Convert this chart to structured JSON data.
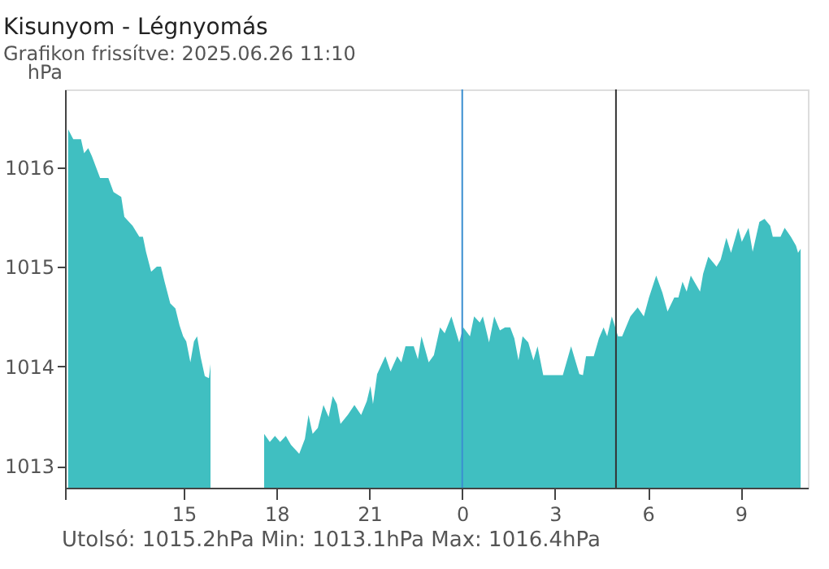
{
  "chart_data": {
    "type": "area",
    "title": "Kisunyom - Légnyomás",
    "subtitle": "Grafikon frissítve: 2025.06.26 11:10",
    "ylabel": "hPa",
    "x": [
      "2025-06-25T11:16",
      "2025-06-25T11:26",
      "2025-06-25T11:41",
      "2025-06-25T11:47",
      "2025-06-25T11:55",
      "2025-06-25T12:02",
      "2025-06-25T12:18",
      "2025-06-25T12:34",
      "2025-06-25T12:44",
      "2025-06-25T12:59",
      "2025-06-25T13:05",
      "2025-06-25T13:21",
      "2025-06-25T13:34",
      "2025-06-25T13:41",
      "2025-06-25T13:47",
      "2025-06-25T13:57",
      "2025-06-25T14:08",
      "2025-06-25T14:16",
      "2025-06-25T14:23",
      "2025-06-25T14:34",
      "2025-06-25T14:44",
      "2025-06-25T14:52",
      "2025-06-25T14:59",
      "2025-06-25T15:05",
      "2025-06-25T15:13",
      "2025-06-25T15:20",
      "2025-06-25T15:26",
      "2025-06-25T15:33",
      "2025-06-25T15:41",
      "2025-06-25T15:49",
      "2025-06-25T15:52",
      "2025-06-25T16:42",
      "2025-06-25T17:36",
      "2025-06-25T17:47",
      "2025-06-25T17:57",
      "2025-06-25T18:07",
      "2025-06-25T18:18",
      "2025-06-25T18:28",
      "2025-06-25T18:44",
      "2025-06-25T18:55",
      "2025-06-25T19:02",
      "2025-06-25T19:10",
      "2025-06-25T19:20",
      "2025-06-25T19:31",
      "2025-06-25T19:41",
      "2025-06-25T19:49",
      "2025-06-25T19:57",
      "2025-06-25T20:04",
      "2025-06-25T20:18",
      "2025-06-25T20:31",
      "2025-06-25T20:44",
      "2025-06-25T20:55",
      "2025-06-25T21:02",
      "2025-06-25T21:07",
      "2025-06-25T21:15",
      "2025-06-25T21:31",
      "2025-06-25T21:41",
      "2025-06-25T21:54",
      "2025-06-25T22:02",
      "2025-06-25T22:10",
      "2025-06-25T22:26",
      "2025-06-25T22:34",
      "2025-06-25T22:41",
      "2025-06-25T22:55",
      "2025-06-25T23:05",
      "2025-06-25T23:17",
      "2025-06-25T23:26",
      "2025-06-25T23:39",
      "2025-06-25T23:54",
      "2025-06-26T00:02",
      "2025-06-26T00:15",
      "2025-06-26T00:23",
      "2025-06-26T00:34",
      "2025-06-26T00:40",
      "2025-06-26T00:52",
      "2025-06-26T01:02",
      "2025-06-26T01:13",
      "2025-06-26T01:23",
      "2025-06-26T01:33",
      "2025-06-26T01:41",
      "2025-06-26T01:49",
      "2025-06-26T01:57",
      "2025-06-26T02:08",
      "2025-06-26T02:18",
      "2025-06-26T02:26",
      "2025-06-26T02:37",
      "2025-06-26T03:15",
      "2025-06-26T03:31",
      "2025-06-26T03:47",
      "2025-06-26T03:54",
      "2025-06-26T04:00",
      "2025-06-26T04:15",
      "2025-06-26T04:25",
      "2025-06-26T04:34",
      "2025-06-26T04:41",
      "2025-06-26T04:50",
      "2025-06-26T05:02",
      "2025-06-26T05:10",
      "2025-06-26T05:26",
      "2025-06-26T05:40",
      "2025-06-26T05:52",
      "2025-06-26T06:02",
      "2025-06-26T06:16",
      "2025-06-26T06:28",
      "2025-06-26T06:38",
      "2025-06-26T06:51",
      "2025-06-26T06:59",
      "2025-06-26T07:07",
      "2025-06-26T07:15",
      "2025-06-26T07:23",
      "2025-06-26T07:33",
      "2025-06-26T07:41",
      "2025-06-26T07:47",
      "2025-06-26T07:57",
      "2025-06-26T08:13",
      "2025-06-26T08:21",
      "2025-06-26T08:32",
      "2025-06-26T08:41",
      "2025-06-26T08:55",
      "2025-06-26T09:02",
      "2025-06-26T09:15",
      "2025-06-26T09:23",
      "2025-06-26T09:36",
      "2025-06-26T09:46",
      "2025-06-26T09:57",
      "2025-06-26T10:02",
      "2025-06-26T10:17",
      "2025-06-26T10:25",
      "2025-06-26T10:37",
      "2025-06-26T10:47",
      "2025-06-26T10:51",
      "2025-06-26T10:56"
    ],
    "series": [
      {
        "color": "#40bfc1",
        "values": [
          1016.38,
          1016.28,
          1016.28,
          1016.14,
          1016.19,
          1016.11,
          1015.89,
          1015.89,
          1015.75,
          1015.7,
          1015.5,
          1015.41,
          1015.3,
          1015.3,
          1015.15,
          1014.95,
          1015.0,
          1015.0,
          1014.85,
          1014.63,
          1014.58,
          1014.41,
          1014.3,
          1014.25,
          1014.04,
          1014.25,
          1014.3,
          1014.09,
          1013.9,
          1013.88,
          1014.02,
          null,
          1013.32,
          1013.24,
          1013.3,
          1013.24,
          1013.3,
          1013.21,
          1013.12,
          1013.27,
          1013.51,
          1013.32,
          1013.38,
          1013.61,
          1013.49,
          1013.7,
          1013.62,
          1013.42,
          1013.51,
          1013.61,
          1013.51,
          1013.65,
          1013.8,
          1013.62,
          1013.92,
          1014.1,
          1013.95,
          1014.1,
          1014.04,
          1014.2,
          1014.2,
          1014.07,
          1014.3,
          1014.04,
          1014.11,
          1014.39,
          1014.33,
          1014.5,
          1014.24,
          1014.39,
          1014.3,
          1014.5,
          1014.44,
          1014.5,
          1014.24,
          1014.5,
          1014.36,
          1014.39,
          1014.39,
          1014.28,
          1014.06,
          1014.3,
          1014.24,
          1014.06,
          1014.2,
          1013.91,
          1013.91,
          1014.2,
          1013.92,
          1013.91,
          1014.1,
          1014.1,
          1014.28,
          1014.39,
          1014.3,
          1014.5,
          1014.3,
          1014.3,
          1014.5,
          1014.59,
          1014.5,
          1014.69,
          1014.91,
          1014.74,
          1014.55,
          1014.69,
          1014.69,
          1014.85,
          1014.75,
          1014.91,
          1014.82,
          1014.75,
          1014.93,
          1015.1,
          1015.0,
          1015.07,
          1015.29,
          1015.14,
          1015.39,
          1015.25,
          1015.39,
          1015.15,
          1015.45,
          1015.48,
          1015.41,
          1015.3,
          1015.3,
          1015.39,
          1015.3,
          1015.21,
          1015.14,
          1015.18
        ]
      }
    ],
    "xlim": [
      "2025-06-25T11:10",
      "2025-06-26T11:10"
    ],
    "xticks": [
      {
        "value": "2025-06-25T11:10",
        "label": null
      },
      {
        "value": "2025-06-25T15:00",
        "label": "15"
      },
      {
        "value": "2025-06-25T18:00",
        "label": "18"
      },
      {
        "value": "2025-06-25T21:00",
        "label": "21"
      },
      {
        "value": "2025-06-26T00:00",
        "label": "0"
      },
      {
        "value": "2025-06-26T03:00",
        "label": "3"
      },
      {
        "value": "2025-06-26T06:00",
        "label": "6"
      },
      {
        "value": "2025-06-26T09:00",
        "label": "9"
      }
    ],
    "ylim": [
      1012.78,
      1016.78
    ],
    "yticks": [
      1013,
      1014,
      1015,
      1016
    ],
    "ref_lines": [
      {
        "axis": "x",
        "value": "2025-06-26T00:00",
        "color": "#3a8fd0"
      },
      {
        "axis": "x",
        "value": "2025-06-26T04:58",
        "color": "#333333"
      }
    ],
    "annotations": [
      "Utolsó: 1015.2hPa  Min: 1013.1hPa  Max: 1016.4hPa"
    ],
    "grid": false
  }
}
